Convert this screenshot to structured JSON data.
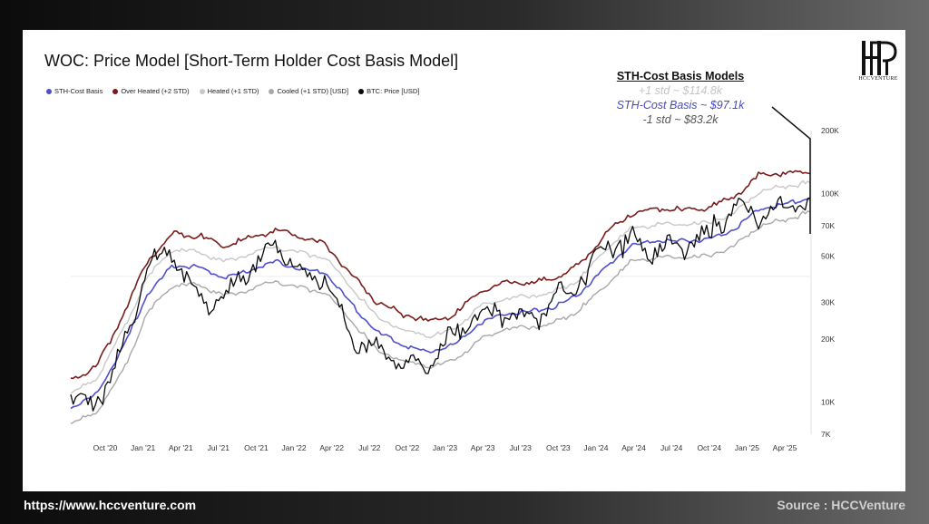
{
  "title": "WOC: Price Model [Short-Term Holder Cost Basis Model]",
  "logo": {
    "text": "HCCVENTURE"
  },
  "annotation": {
    "heading": "STH-Cost Basis Models",
    "line1": "+1 std ~ $114.8k",
    "line2": "STH-Cost Basis ~ $97.1k",
    "line3": "-1 std ~ $83.2k"
  },
  "footer": {
    "url": "https://www.hccventure.com",
    "source": "Source : HCCVenture"
  },
  "chart_data": {
    "type": "line",
    "title": "WOC: Price Model [Short-Term Holder Cost Basis Model]",
    "x_labels": [
      "Oct '20",
      "Jan '21",
      "Apr '21",
      "Jul '21",
      "Oct '21",
      "Jan '22",
      "Apr '22",
      "Jul '22",
      "Oct '22",
      "Jan '23",
      "Apr '23",
      "Jul '23",
      "Oct '23",
      "Jan '24",
      "Apr '24",
      "Jul '24",
      "Oct '24",
      "Jan '25",
      "Apr '25"
    ],
    "x_range": [
      "2020-08",
      "2025-06"
    ],
    "y_scale": "log",
    "y_ticks": [
      {
        "value": 7000,
        "label": "7K"
      },
      {
        "value": 10000,
        "label": "10K"
      },
      {
        "value": 20000,
        "label": "20K"
      },
      {
        "value": 30000,
        "label": "30K"
      },
      {
        "value": 50000,
        "label": "50K"
      },
      {
        "value": 70000,
        "label": "70K"
      },
      {
        "value": 100000,
        "label": "100K"
      },
      {
        "value": 200000,
        "label": "200K"
      }
    ],
    "ylim": [
      7000,
      200000
    ],
    "colors": {
      "sth": "#4f4fd0",
      "over_heated": "#7a1c1c",
      "heated": "#c8c8c8",
      "cooled": "#a8a8a8",
      "price": "#0a0a0a"
    },
    "series": [
      {
        "key": "sth",
        "name": "STH-Cost Basis",
        "values": [
          9500,
          11000,
          18000,
          33000,
          46000,
          45000,
          40000,
          43000,
          48000,
          44000,
          42000,
          30000,
          22000,
          19000,
          17500,
          19000,
          24000,
          27000,
          27500,
          29000,
          34000,
          45000,
          57000,
          60000,
          60000,
          61000,
          68000,
          85000,
          90000,
          97000
        ]
      },
      {
        "key": "over_heated",
        "name": "Over Heated (+2 STD)",
        "values": [
          13000,
          15000,
          26000,
          48000,
          66000,
          64000,
          57000,
          62000,
          68000,
          63000,
          58000,
          42000,
          31000,
          27000,
          25000,
          26500,
          34000,
          38000,
          38000,
          40000,
          47000,
          66000,
          82000,
          86000,
          85000,
          87000,
          98000,
          125000,
          128000,
          130000
        ]
      },
      {
        "key": "heated",
        "name": "Heated (+1 STD)",
        "values": [
          11200,
          13000,
          22000,
          40000,
          55000,
          53000,
          48000,
          52000,
          57000,
          53000,
          50000,
          36000,
          26000,
          22500,
          21000,
          22500,
          29000,
          32000,
          32500,
          34500,
          40000,
          55000,
          69000,
          72000,
          72000,
          73500,
          82000,
          104000,
          110000,
          115000
        ]
      },
      {
        "key": "cooled",
        "name": "Cooled (+1 STD) [USD]",
        "values": [
          8000,
          9000,
          14000,
          27000,
          37000,
          37000,
          33000,
          35000,
          39000,
          36000,
          34000,
          25000,
          18000,
          16000,
          15000,
          16000,
          20000,
          23000,
          23000,
          24500,
          28500,
          37000,
          48000,
          50000,
          50000,
          51000,
          57000,
          71000,
          76000,
          83200
        ]
      },
      {
        "key": "price",
        "name": "BTC: Price [USD]",
        "values": [
          11500,
          10800,
          19000,
          50000,
          58000,
          35000,
          34000,
          47000,
          62000,
          46000,
          43000,
          23000,
          20000,
          17000,
          16500,
          23000,
          28000,
          30000,
          27000,
          34000,
          42000,
          62000,
          66000,
          58000,
          62000,
          68000,
          95000,
          84000,
          94000,
          107000
        ]
      }
    ]
  }
}
